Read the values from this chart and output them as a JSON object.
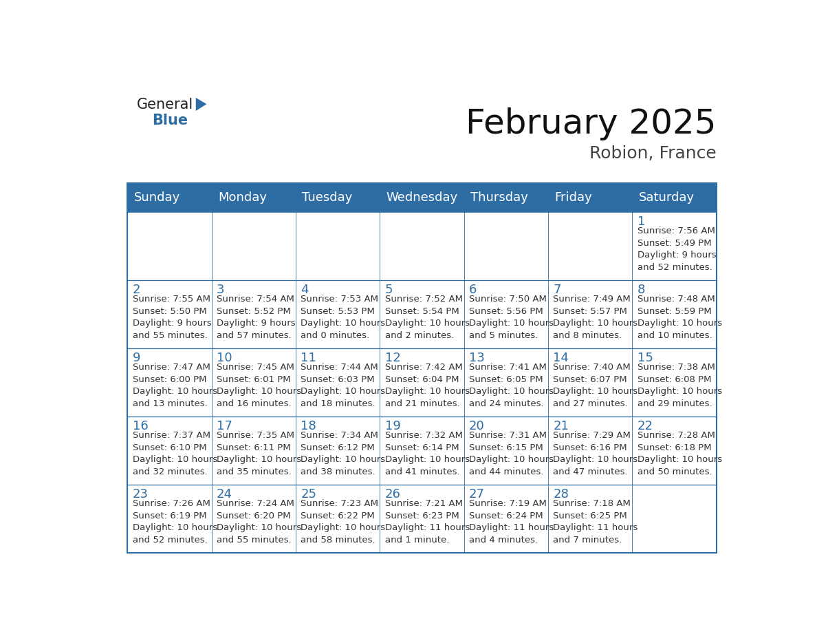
{
  "title": "February 2025",
  "subtitle": "Robion, France",
  "header_bg": "#2E6DA4",
  "header_text": "#FFFFFF",
  "border_color": "#2E6DA4",
  "text_color": "#333333",
  "day_headers": [
    "Sunday",
    "Monday",
    "Tuesday",
    "Wednesday",
    "Thursday",
    "Friday",
    "Saturday"
  ],
  "calendar_data": [
    [
      null,
      null,
      null,
      null,
      null,
      null,
      {
        "day": 1,
        "sunrise": "7:56 AM",
        "sunset": "5:49 PM",
        "daylight": "9 hours\nand 52 minutes."
      }
    ],
    [
      {
        "day": 2,
        "sunrise": "7:55 AM",
        "sunset": "5:50 PM",
        "daylight": "9 hours\nand 55 minutes."
      },
      {
        "day": 3,
        "sunrise": "7:54 AM",
        "sunset": "5:52 PM",
        "daylight": "9 hours\nand 57 minutes."
      },
      {
        "day": 4,
        "sunrise": "7:53 AM",
        "sunset": "5:53 PM",
        "daylight": "10 hours\nand 0 minutes."
      },
      {
        "day": 5,
        "sunrise": "7:52 AM",
        "sunset": "5:54 PM",
        "daylight": "10 hours\nand 2 minutes."
      },
      {
        "day": 6,
        "sunrise": "7:50 AM",
        "sunset": "5:56 PM",
        "daylight": "10 hours\nand 5 minutes."
      },
      {
        "day": 7,
        "sunrise": "7:49 AM",
        "sunset": "5:57 PM",
        "daylight": "10 hours\nand 8 minutes."
      },
      {
        "day": 8,
        "sunrise": "7:48 AM",
        "sunset": "5:59 PM",
        "daylight": "10 hours\nand 10 minutes."
      }
    ],
    [
      {
        "day": 9,
        "sunrise": "7:47 AM",
        "sunset": "6:00 PM",
        "daylight": "10 hours\nand 13 minutes."
      },
      {
        "day": 10,
        "sunrise": "7:45 AM",
        "sunset": "6:01 PM",
        "daylight": "10 hours\nand 16 minutes."
      },
      {
        "day": 11,
        "sunrise": "7:44 AM",
        "sunset": "6:03 PM",
        "daylight": "10 hours\nand 18 minutes."
      },
      {
        "day": 12,
        "sunrise": "7:42 AM",
        "sunset": "6:04 PM",
        "daylight": "10 hours\nand 21 minutes."
      },
      {
        "day": 13,
        "sunrise": "7:41 AM",
        "sunset": "6:05 PM",
        "daylight": "10 hours\nand 24 minutes."
      },
      {
        "day": 14,
        "sunrise": "7:40 AM",
        "sunset": "6:07 PM",
        "daylight": "10 hours\nand 27 minutes."
      },
      {
        "day": 15,
        "sunrise": "7:38 AM",
        "sunset": "6:08 PM",
        "daylight": "10 hours\nand 29 minutes."
      }
    ],
    [
      {
        "day": 16,
        "sunrise": "7:37 AM",
        "sunset": "6:10 PM",
        "daylight": "10 hours\nand 32 minutes."
      },
      {
        "day": 17,
        "sunrise": "7:35 AM",
        "sunset": "6:11 PM",
        "daylight": "10 hours\nand 35 minutes."
      },
      {
        "day": 18,
        "sunrise": "7:34 AM",
        "sunset": "6:12 PM",
        "daylight": "10 hours\nand 38 minutes."
      },
      {
        "day": 19,
        "sunrise": "7:32 AM",
        "sunset": "6:14 PM",
        "daylight": "10 hours\nand 41 minutes."
      },
      {
        "day": 20,
        "sunrise": "7:31 AM",
        "sunset": "6:15 PM",
        "daylight": "10 hours\nand 44 minutes."
      },
      {
        "day": 21,
        "sunrise": "7:29 AM",
        "sunset": "6:16 PM",
        "daylight": "10 hours\nand 47 minutes."
      },
      {
        "day": 22,
        "sunrise": "7:28 AM",
        "sunset": "6:18 PM",
        "daylight": "10 hours\nand 50 minutes."
      }
    ],
    [
      {
        "day": 23,
        "sunrise": "7:26 AM",
        "sunset": "6:19 PM",
        "daylight": "10 hours\nand 52 minutes."
      },
      {
        "day": 24,
        "sunrise": "7:24 AM",
        "sunset": "6:20 PM",
        "daylight": "10 hours\nand 55 minutes."
      },
      {
        "day": 25,
        "sunrise": "7:23 AM",
        "sunset": "6:22 PM",
        "daylight": "10 hours\nand 58 minutes."
      },
      {
        "day": 26,
        "sunrise": "7:21 AM",
        "sunset": "6:23 PM",
        "daylight": "11 hours\nand 1 minute."
      },
      {
        "day": 27,
        "sunrise": "7:19 AM",
        "sunset": "6:24 PM",
        "daylight": "11 hours\nand 4 minutes."
      },
      {
        "day": 28,
        "sunrise": "7:18 AM",
        "sunset": "6:25 PM",
        "daylight": "11 hours\nand 7 minutes."
      },
      null
    ]
  ],
  "header_fontsize": 36,
  "subtitle_fontsize": 18,
  "day_header_fontsize": 13,
  "day_num_fontsize": 13,
  "cell_text_fontsize": 9.5,
  "logo_general_color": "#222222",
  "logo_blue_color": "#2E6DA4",
  "logo_triangle_color": "#2E6DA4"
}
